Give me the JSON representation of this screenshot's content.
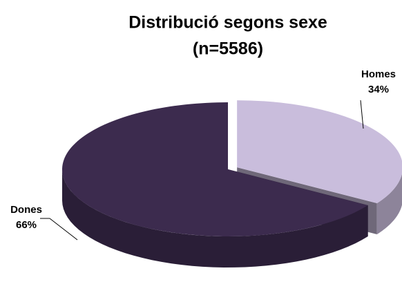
{
  "chart_data": {
    "type": "pie",
    "title": "Distribució segons sexe",
    "subtitle": "(n=5586)",
    "categories": [
      "Homes",
      "Dones"
    ],
    "values": [
      34,
      66
    ],
    "value_labels": [
      "34%",
      "66%"
    ],
    "colors": [
      "#c9bddc",
      "#3c2b4e"
    ],
    "legend": false
  }
}
